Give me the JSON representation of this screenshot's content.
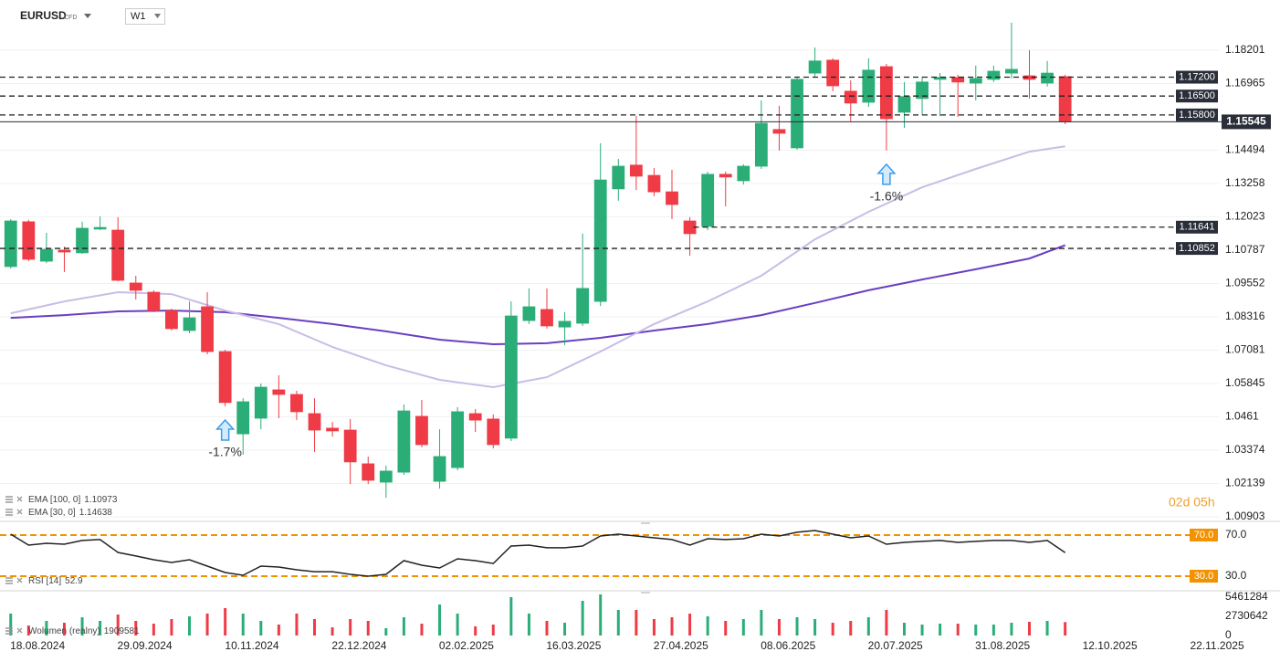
{
  "header": {
    "symbol": "EURUSD",
    "market": "CFD",
    "interval": "W1"
  },
  "chart_data": [
    {
      "type": "candlestick",
      "xlim": [
        -0.6,
        67.6
      ],
      "ylim": [
        1.0077,
        1.2006
      ],
      "yticks": [
        1.18201,
        1.16965,
        1.14494,
        1.13258,
        1.12023,
        1.10787,
        1.09552,
        1.08316,
        1.07081,
        1.05845,
        1.0461,
        1.03374,
        1.02139,
        1.00903
      ],
      "xticks": [
        {
          "value": 1.5,
          "label": "18.08.2024"
        },
        {
          "value": 7.5,
          "label": "29.09.2024"
        },
        {
          "value": 13.5,
          "label": "10.11.2024"
        },
        {
          "value": 19.5,
          "label": "22.12.2024"
        },
        {
          "value": 25.5,
          "label": "02.02.2025"
        },
        {
          "value": 31.5,
          "label": "16.03.2025"
        },
        {
          "value": 37.5,
          "label": "27.04.2025"
        },
        {
          "value": 43.5,
          "label": "08.06.2025"
        },
        {
          "value": 49.5,
          "label": "20.07.2025"
        },
        {
          "value": 55.5,
          "label": "31.08.2025"
        },
        {
          "value": 61.5,
          "label": "12.10.2025"
        },
        {
          "value": 67.5,
          "label": "22.11.2025"
        }
      ],
      "grid": true,
      "up_color": "#2bad78",
      "down_color": "#ef3b46",
      "x": [
        0,
        1,
        2,
        3,
        4,
        5,
        6,
        7,
        8,
        9,
        10,
        11,
        12,
        13,
        14,
        15,
        16,
        17,
        18,
        19,
        20,
        21,
        22,
        23,
        24,
        25,
        26,
        27,
        28,
        29,
        30,
        31,
        32,
        33,
        34,
        35,
        36,
        37,
        38,
        39,
        40,
        41,
        42,
        43,
        44,
        45,
        46,
        47,
        48,
        49,
        50,
        51,
        52,
        53,
        54,
        55,
        56,
        57,
        58,
        59
      ],
      "open": [
        1.1018,
        1.1184,
        1.1038,
        1.1079,
        1.1069,
        1.1157,
        1.1153,
        1.0957,
        1.0923,
        1.0855,
        1.0781,
        1.0869,
        1.0703,
        1.0398,
        1.0456,
        1.0561,
        1.0544,
        1.0473,
        1.0419,
        1.0412,
        1.0287,
        1.0219,
        1.0256,
        1.0463,
        1.0222,
        1.0273,
        1.0473,
        1.0453,
        1.0382,
        1.0818,
        1.0859,
        1.0794,
        1.0808,
        1.0889,
        1.1306,
        1.1394,
        1.1356,
        1.1295,
        1.1187,
        1.1167,
        1.136,
        1.1336,
        1.139,
        1.1526,
        1.1458,
        1.1735,
        1.1783,
        1.1668,
        1.1627,
        1.1759,
        1.159,
        1.1641,
        1.1712,
        1.1719,
        1.1698,
        1.1712,
        1.1735,
        1.1725,
        1.1698,
        1.1722
      ],
      "high": [
        1.1194,
        1.1191,
        1.1143,
        1.1092,
        1.1184,
        1.1204,
        1.1201,
        1.0984,
        1.093,
        1.0862,
        1.0889,
        1.0923,
        1.071,
        1.053,
        1.0585,
        1.0615,
        1.0558,
        1.053,
        1.0442,
        1.0453,
        1.0314,
        1.028,
        1.0507,
        1.0524,
        1.0415,
        1.0497,
        1.049,
        1.047,
        1.0889,
        1.0937,
        1.0937,
        1.0849,
        1.114,
        1.1475,
        1.1417,
        1.1576,
        1.1383,
        1.1377,
        1.1201,
        1.137,
        1.137,
        1.1397,
        1.1634,
        1.1614,
        1.1722,
        1.183,
        1.179,
        1.1708,
        1.179,
        1.1769,
        1.1702,
        1.1722,
        1.1735,
        1.1729,
        1.1763,
        1.1763,
        1.1922,
        1.182,
        1.178,
        1.1729
      ],
      "low": [
        1.1011,
        1.1038,
        1.1031,
        1.0998,
        1.1065,
        1.1153,
        1.0964,
        1.0896,
        1.0849,
        1.0781,
        1.0771,
        1.0693,
        1.05,
        1.0321,
        1.0415,
        1.0456,
        1.0449,
        1.0331,
        1.0388,
        1.0212,
        1.0212,
        1.0161,
        1.0246,
        1.0348,
        1.0195,
        1.0263,
        1.0405,
        1.0344,
        1.0371,
        1.0805,
        1.0788,
        1.0727,
        1.0798,
        1.0872,
        1.1262,
        1.1302,
        1.1279,
        1.1194,
        1.1058,
        1.1153,
        1.1241,
        1.1322,
        1.138,
        1.1448,
        1.1451,
        1.1722,
        1.1668,
        1.1556,
        1.161,
        1.1448,
        1.1532,
        1.158,
        1.1576,
        1.1573,
        1.1634,
        1.1702,
        1.1715,
        1.1641,
        1.1685,
        1.1546
      ],
      "close": [
        1.1187,
        1.1045,
        1.1082,
        1.1072,
        1.116,
        1.1163,
        1.0967,
        1.093,
        1.0855,
        1.0788,
        1.0828,
        1.0703,
        1.0514,
        1.0517,
        1.0571,
        1.0544,
        1.048,
        1.0412,
        1.0409,
        1.0294,
        1.0226,
        1.026,
        1.0483,
        1.0358,
        1.0314,
        1.048,
        1.0449,
        1.0358,
        1.0835,
        1.0869,
        1.0798,
        1.0815,
        1.0937,
        1.1339,
        1.139,
        1.1353,
        1.1295,
        1.1248,
        1.114,
        1.136,
        1.135,
        1.139,
        1.1549,
        1.1512,
        1.1712,
        1.178,
        1.1688,
        1.1624,
        1.1746,
        1.1566,
        1.1648,
        1.1702,
        1.1719,
        1.1702,
        1.1715,
        1.1742,
        1.1749,
        1.1712,
        1.1735,
        1.15545
      ],
      "series": [
        {
          "name": "EMA [100, 0]",
          "color": "#6a3fc0",
          "last": 1.10973,
          "x": [
            0,
            3,
            6,
            9,
            12,
            15,
            18,
            21,
            24,
            27,
            30,
            33,
            36,
            39,
            42,
            45,
            48,
            51,
            54,
            57,
            59
          ],
          "values": [
            1.0828,
            1.0838,
            1.0852,
            1.0855,
            1.0849,
            1.0828,
            1.0805,
            1.0778,
            1.0747,
            1.073,
            1.0734,
            1.0754,
            1.0781,
            1.0805,
            1.0838,
            1.0883,
            1.093,
            1.097,
            1.1008,
            1.1048,
            1.1097
          ]
        },
        {
          "name": "EMA [30, 0]",
          "color": "#c8bde6",
          "last": 1.14638,
          "x": [
            0,
            3,
            6,
            9,
            12,
            15,
            18,
            21,
            24,
            27,
            30,
            33,
            36,
            39,
            42,
            45,
            48,
            51,
            54,
            57,
            59
          ],
          "values": [
            1.0845,
            1.0889,
            1.0923,
            1.0916,
            1.0855,
            1.0805,
            1.072,
            1.0652,
            1.0598,
            1.0571,
            1.0608,
            1.0703,
            1.0805,
            1.0889,
            1.0984,
            1.1119,
            1.1221,
            1.1312,
            1.138,
            1.1444,
            1.1464
          ]
        }
      ],
      "level_color": "#2a2e39",
      "levels": [
        {
          "value": 1.172,
          "label": "1.17200"
        },
        {
          "value": 1.165,
          "label": "1.16500"
        },
        {
          "value": 1.158,
          "label": "1.15800"
        },
        {
          "value": 1.11641,
          "start": 38.2
        },
        {
          "value": 1.10852
        }
      ],
      "last_price": 1.15545,
      "annotations": [
        {
          "x": 12,
          "label": "-1.7%"
        },
        {
          "x": 49,
          "label": "-1.6%"
        }
      ],
      "countdown": "02d 05h"
    },
    {
      "type": "line",
      "name": "RSI [14]",
      "last": 52.9,
      "color": "#222222",
      "ylim": [
        16.7,
        82.4
      ],
      "yticks": [
        {
          "value": 70,
          "label": "70.0"
        },
        {
          "value": 30,
          "label": "30.0"
        }
      ],
      "level_color": "#f39200",
      "levels": [
        {
          "value": 70,
          "label": "70.0"
        },
        {
          "value": 30,
          "label": "30.0"
        }
      ],
      "x": [
        0,
        1,
        2,
        3,
        4,
        5,
        6,
        7,
        8,
        9,
        10,
        11,
        12,
        13,
        14,
        15,
        16,
        17,
        18,
        19,
        20,
        21,
        22,
        23,
        24,
        25,
        26,
        27,
        28,
        29,
        30,
        31,
        32,
        33,
        34,
        35,
        36,
        37,
        38,
        39,
        40,
        41,
        42,
        43,
        44,
        45,
        46,
        47,
        48,
        49,
        50,
        51,
        52,
        53,
        54,
        55,
        56,
        57,
        58,
        59
      ],
      "values": [
        70.9,
        60.2,
        62.0,
        61.1,
        64.7,
        65.6,
        53.1,
        49.6,
        46.0,
        43.3,
        46.0,
        39.8,
        33.6,
        30.9,
        39.8,
        38.9,
        36.2,
        34.4,
        34.4,
        31.8,
        30.0,
        31.8,
        45.1,
        40.7,
        38.0,
        46.9,
        45.1,
        42.4,
        59.3,
        60.2,
        57.6,
        57.6,
        59.3,
        69.1,
        70.9,
        69.1,
        67.3,
        65.6,
        60.2,
        66.4,
        65.6,
        66.4,
        70.9,
        69.1,
        72.7,
        74.4,
        70.9,
        67.3,
        69.1,
        61.1,
        62.9,
        63.8,
        64.7,
        62.9,
        63.8,
        64.7,
        64.7,
        62.9,
        64.7,
        52.9
      ]
    },
    {
      "type": "bar",
      "name": "Wolumen (realny)",
      "last": 1909581,
      "ylim": [
        -1170270,
        6241440
      ],
      "yticks": [
        5461284,
        2730642,
        0
      ],
      "x": [
        0,
        1,
        2,
        3,
        4,
        5,
        6,
        7,
        8,
        9,
        10,
        11,
        12,
        13,
        14,
        15,
        16,
        17,
        18,
        19,
        20,
        21,
        22,
        23,
        24,
        25,
        26,
        27,
        28,
        29,
        30,
        31,
        32,
        33,
        34,
        35,
        36,
        37,
        38,
        39,
        40,
        41,
        42,
        43,
        44,
        45,
        46,
        47,
        48,
        49,
        50,
        51,
        52,
        53,
        54,
        55,
        56,
        57,
        58,
        59
      ],
      "values": [
        3121000,
        1430000,
        2080000,
        1820000,
        2601000,
        2080000,
        2991000,
        2080000,
        1690000,
        2341000,
        2731000,
        3121000,
        3901000,
        3121000,
        2080000,
        1560000,
        3121000,
        2341000,
        1170000,
        2341000,
        2080000,
        1040000,
        2601000,
        1690000,
        4421000,
        3121000,
        1300000,
        1560000,
        5461000,
        3121000,
        2080000,
        1820000,
        4941000,
        5851000,
        3641000,
        3641000,
        2341000,
        2601000,
        3121000,
        2731000,
        2080000,
        2341000,
        3641000,
        2341000,
        2601000,
        2341000,
        1820000,
        2080000,
        2601000,
        3641000,
        1820000,
        1560000,
        1690000,
        1690000,
        1560000,
        1560000,
        1820000,
        1950000,
        2080000,
        1909581
      ]
    }
  ]
}
